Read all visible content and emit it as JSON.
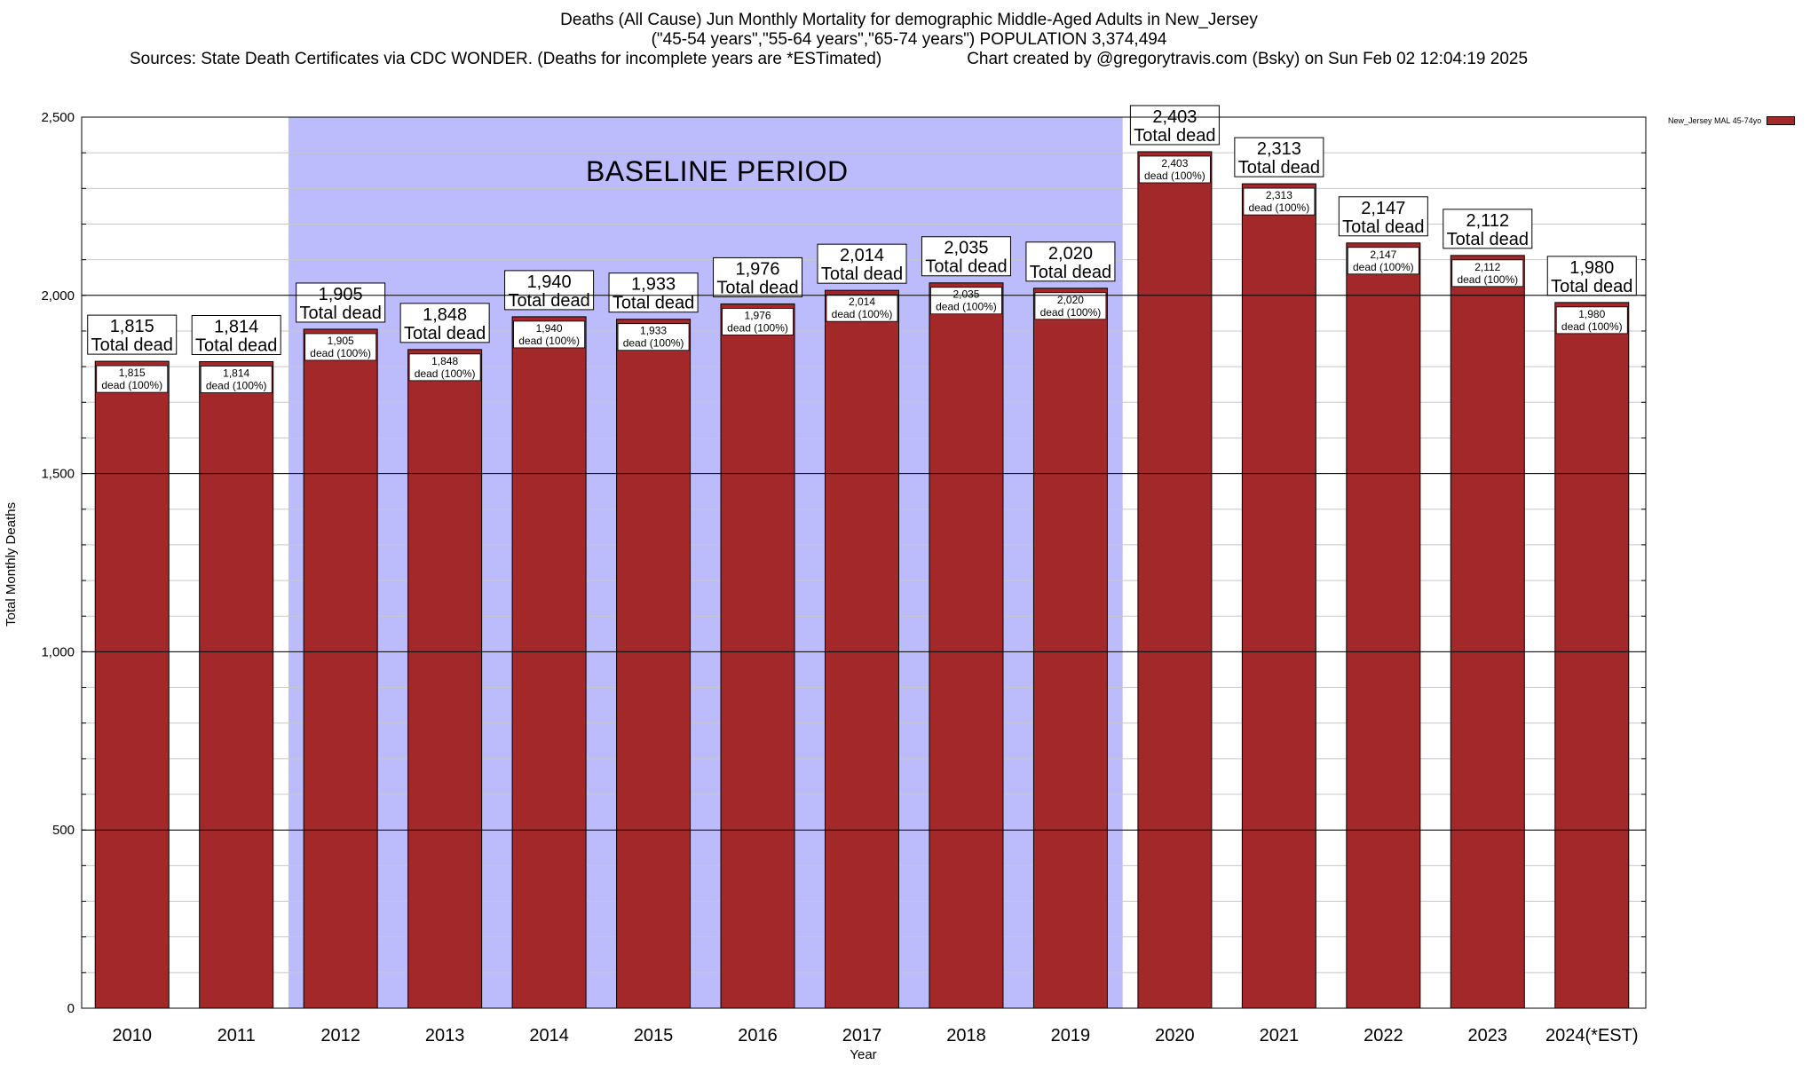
{
  "title": {
    "line1": "Deaths (All Cause) Jun Monthly Mortality for demographic Middle-Aged Adults in New_Jersey",
    "line2": "(\"45-54 years\",\"55-64 years\",\"65-74 years\") POPULATION 3,374,494",
    "line3a": "Sources: State Death Certificates via CDC WONDER. (Deaths for incomplete years are *ESTimated)",
    "line3b": "Chart created by @gregorytravis.com (Bsky) on Sun Feb 02 12:04:19 2025"
  },
  "colors": {
    "bar": "#a2282a",
    "baseline_band": "#bcbcfc",
    "grid": "#c8c8c8"
  },
  "chart_data": {
    "type": "bar",
    "categories": [
      "2010",
      "2011",
      "2012",
      "2013",
      "2014",
      "2015",
      "2016",
      "2017",
      "2018",
      "2019",
      "2020",
      "2021",
      "2022",
      "2023",
      "2024(*EST)"
    ],
    "series": [
      {
        "name": "New_Jersey MAL 45-74yo",
        "values": [
          1815,
          1814,
          1905,
          1848,
          1940,
          1933,
          1976,
          2014,
          2035,
          2020,
          2403,
          2313,
          2147,
          2112,
          1980
        ]
      }
    ],
    "total_labels": [
      "1,815",
      "1,814",
      "1,905",
      "1,848",
      "1,940",
      "1,933",
      "1,976",
      "2,014",
      "2,035",
      "2,020",
      "2,403",
      "2,313",
      "2,147",
      "2,112",
      "1,980"
    ],
    "total_suffix": "Total dead",
    "inner_suffix": "dead (100%)",
    "xlabel": "Year",
    "ylabel": "Total Monthly Deaths",
    "ylim": [
      0,
      2500
    ],
    "yticks": [
      0,
      500,
      1000,
      1500,
      2000,
      2500
    ],
    "ytick_labels": [
      "0",
      "500",
      "1,000",
      "1,500",
      "2,000",
      "2,500"
    ],
    "baseline_period": {
      "label": "BASELINE PERIOD",
      "from": "2012",
      "to": "2019"
    },
    "legend_placement": "top-right",
    "grid": true
  }
}
